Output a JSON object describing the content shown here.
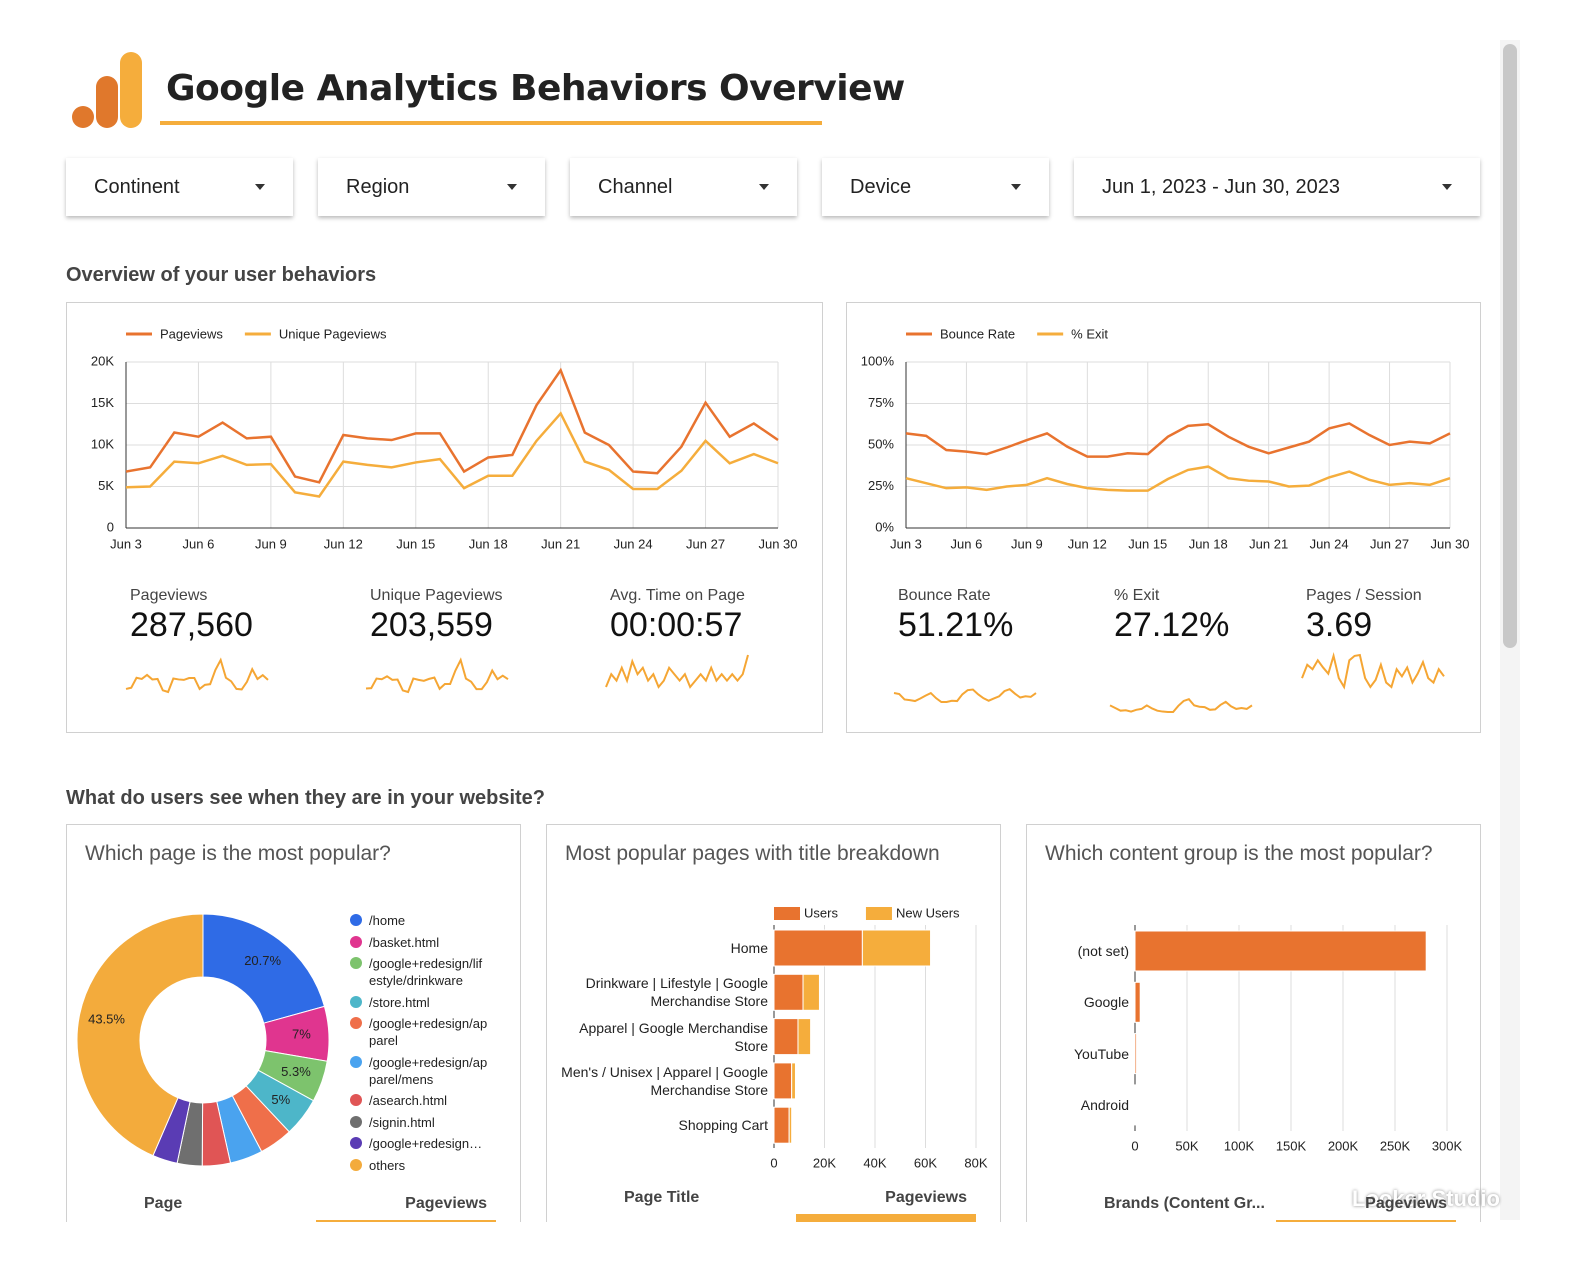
{
  "header": {
    "title": "Google Analytics Behaviors Overview"
  },
  "filters": [
    "Continent",
    "Region",
    "Channel",
    "Device",
    "Jun 1, 2023 - Jun 30, 2023"
  ],
  "sections": [
    "Overview of your user behaviors",
    "What do users see when they are in your website?"
  ],
  "scorecards": [
    {
      "label": "Pageviews",
      "value": "287,560"
    },
    {
      "label": "Unique Pageviews",
      "value": "203,559"
    },
    {
      "label": "Avg. Time on Page",
      "value": "00:00:57",
      "sparkline": [
        56,
        58,
        57,
        59,
        57,
        60,
        58,
        59,
        57,
        58,
        56,
        57,
        59,
        58,
        57,
        58,
        56,
        57,
        58,
        57,
        59,
        57,
        58,
        57,
        58,
        57,
        58,
        61
      ]
    },
    {
      "label": "Bounce Rate",
      "value": "51.21%"
    },
    {
      "label": "% Exit",
      "value": "27.12%"
    },
    {
      "label": "Pages / Session",
      "value": "3.69",
      "sparkline": [
        3.6,
        3.75,
        3.7,
        3.8,
        3.72,
        3.65,
        3.85,
        3.6,
        3.5,
        3.8,
        3.85,
        3.86,
        3.6,
        3.5,
        3.58,
        3.75,
        3.55,
        3.5,
        3.7,
        3.62,
        3.72,
        3.55,
        3.65,
        3.78,
        3.6,
        3.55,
        3.7,
        3.62
      ]
    }
  ],
  "watermark": "Looker Studio",
  "chart_data": [
    {
      "type": "line",
      "categories": [
        "Jun 3",
        null,
        null,
        "Jun 6",
        null,
        null,
        "Jun 9",
        null,
        null,
        "Jun 12",
        null,
        null,
        "Jun 15",
        null,
        null,
        "Jun 18",
        null,
        null,
        "Jun 21",
        null,
        null,
        "Jun 24",
        null,
        null,
        "Jun 27",
        null,
        null,
        "Jun 30"
      ],
      "series": [
        {
          "name": "Pageviews",
          "color": "#e8732f",
          "values": [
            6800,
            7300,
            11500,
            11000,
            12700,
            10800,
            11000,
            6200,
            5500,
            11200,
            10800,
            10600,
            11400,
            11400,
            6800,
            8500,
            8800,
            14800,
            19000,
            11500,
            10000,
            6800,
            6600,
            9800,
            15100,
            11000,
            12600,
            10600
          ]
        },
        {
          "name": "Unique Pageviews",
          "color": "#f5ad3c",
          "values": [
            4900,
            5000,
            8000,
            7800,
            8700,
            7600,
            7700,
            4300,
            3800,
            8000,
            7600,
            7300,
            7900,
            8300,
            4800,
            6300,
            6300,
            10500,
            13800,
            8000,
            7000,
            4700,
            4700,
            6900,
            10500,
            7800,
            8900,
            7800
          ]
        }
      ],
      "ylim": [
        0,
        20000
      ],
      "yticks": [
        0,
        {
          "value": 5000,
          "label": "5K"
        },
        {
          "value": 10000,
          "label": "10K"
        },
        {
          "value": 15000,
          "label": "15K"
        },
        {
          "value": 20000,
          "label": "20K"
        }
      ],
      "grid": true
    },
    {
      "type": "line",
      "categories": [
        "Jun 3",
        null,
        null,
        "Jun 6",
        null,
        null,
        "Jun 9",
        null,
        null,
        "Jun 12",
        null,
        null,
        "Jun 15",
        null,
        null,
        "Jun 18",
        null,
        null,
        "Jun 21",
        null,
        null,
        "Jun 24",
        null,
        null,
        "Jun 27",
        null,
        null,
        "Jun 30"
      ],
      "series": [
        {
          "name": "Bounce Rate",
          "color": "#e8732f",
          "values": [
            57,
            55.5,
            47,
            46,
            44.5,
            48.5,
            53,
            57,
            49,
            43,
            43,
            45,
            44.5,
            55,
            61.5,
            62.5,
            55,
            49,
            45,
            48.5,
            52,
            60,
            63,
            56,
            50,
            52,
            51,
            57
          ]
        },
        {
          "name": "% Exit",
          "color": "#f5ad3c",
          "values": [
            30,
            27,
            24,
            24.5,
            23,
            25,
            26,
            30,
            26.5,
            24,
            23,
            22.5,
            22.5,
            29.5,
            35,
            37,
            30,
            28.5,
            28,
            25,
            25.5,
            30.5,
            34,
            29,
            26,
            27,
            26,
            30
          ]
        }
      ],
      "ylim": [
        0,
        100
      ],
      "yticks": [
        {
          "value": 0,
          "label": "0%"
        },
        {
          "value": 25,
          "label": "25%"
        },
        {
          "value": 50,
          "label": "50%"
        },
        {
          "value": 75,
          "label": "75%"
        },
        {
          "value": 100,
          "label": "100%"
        }
      ],
      "grid": true
    },
    {
      "type": "pie",
      "title": "Which page is the most popular?",
      "categories": [
        "/home",
        "/basket.html",
        "/google+redesign/lifestyle/drinkware",
        "/store.html",
        "/google+redesign/apparel",
        "/google+redesign/apparel/mens",
        "/asearch.html",
        "/signin.html",
        "/google+redesign…",
        "others"
      ],
      "values": [
        20.7,
        7,
        5.3,
        5,
        4.3,
        4.2,
        3.6,
        3.2,
        3.2,
        43.5
      ],
      "value_labels": [
        "20.7%",
        "7%",
        "5.3%",
        "5%",
        null,
        null,
        null,
        null,
        null,
        "43.5%"
      ],
      "colors": [
        "#2f6be6",
        "#e0358f",
        "#7dc36d",
        "#4db6c9",
        "#ef6f4a",
        "#4aa3ef",
        "#e05555",
        "#6f6f6f",
        "#5a3cb4",
        "#f3ab3c"
      ],
      "columns": [
        "Page",
        "Pageviews"
      ]
    },
    {
      "type": "hbar",
      "title": "Most popular pages with title breakdown",
      "categories": [
        "Home",
        "Drinkware | Lifestyle | Google Merchandise Store",
        "Apparel | Google Merchandise Store",
        "Men's / Unisex | Apparel | Google Merchandise Store",
        "Shopping Cart"
      ],
      "series": [
        {
          "name": "Users",
          "color": "#e8732f",
          "values": [
            35000,
            11500,
            9500,
            7000,
            6000
          ]
        },
        {
          "name": "New Users",
          "color": "#f5ad3c",
          "values": [
            27000,
            6500,
            5000,
            1500,
            1000
          ]
        }
      ],
      "xlim": [
        0,
        80000
      ],
      "xticks": [
        0,
        {
          "value": 20000,
          "label": "20K"
        },
        {
          "value": 40000,
          "label": "40K"
        },
        {
          "value": 60000,
          "label": "60K"
        },
        {
          "value": 80000,
          "label": "80K"
        }
      ],
      "columns": [
        "Page Title",
        "Pageviews"
      ]
    },
    {
      "type": "hbar",
      "title": "Which content group is the most popular?",
      "categories": [
        "(not set)",
        "Google",
        "YouTube",
        "Android"
      ],
      "values": [
        280000,
        5000,
        1500,
        500
      ],
      "color": "#e8732f",
      "xlim": [
        0,
        300000
      ],
      "xticks": [
        0,
        {
          "value": 50000,
          "label": "50K"
        },
        {
          "value": 100000,
          "label": "100K"
        },
        {
          "value": 150000,
          "label": "150K"
        },
        {
          "value": 200000,
          "label": "200K"
        },
        {
          "value": 250000,
          "label": "250K"
        },
        {
          "value": 300000,
          "label": "300K"
        }
      ],
      "columns": [
        "Brands (Content Gr...",
        "Pageviews"
      ]
    }
  ]
}
